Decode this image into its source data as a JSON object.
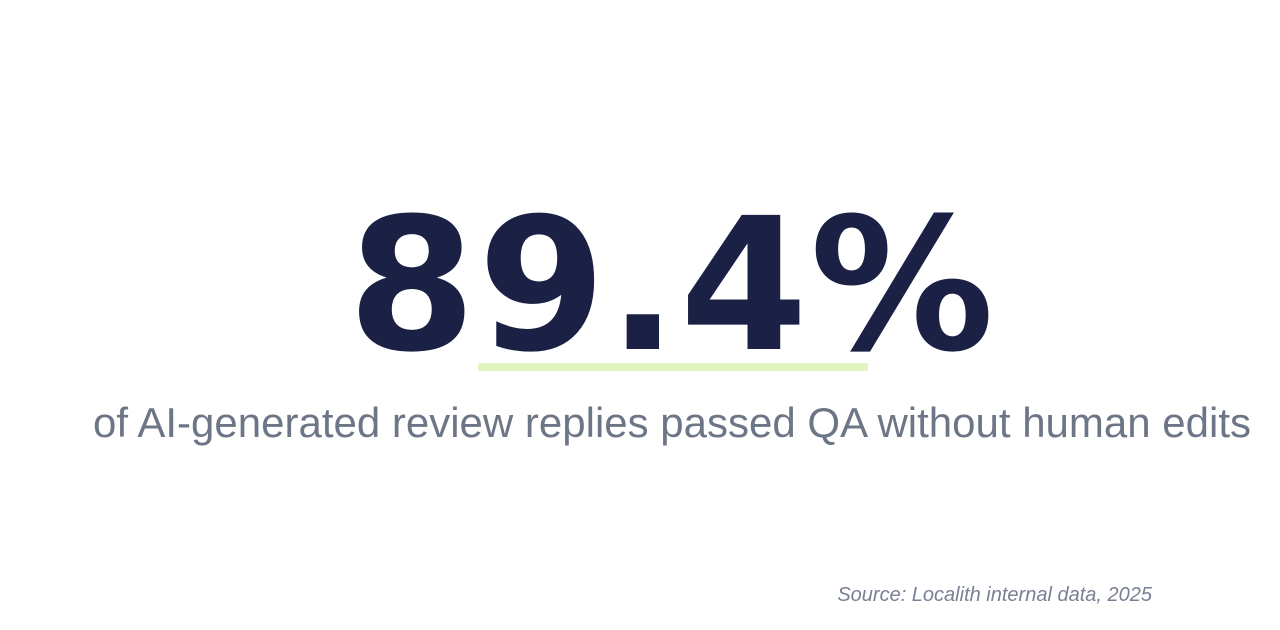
{
  "page": {
    "background_color": "#ffffff"
  },
  "stat": {
    "value": "89.4%",
    "value_color": "#1a2144",
    "underline_color": "#e1f5c1",
    "description": "of AI-generated review replies passed QA without human edits",
    "description_color": "#6d7686"
  },
  "source": {
    "text": "Source: Localith internal data, 2025",
    "color": "#788093"
  }
}
